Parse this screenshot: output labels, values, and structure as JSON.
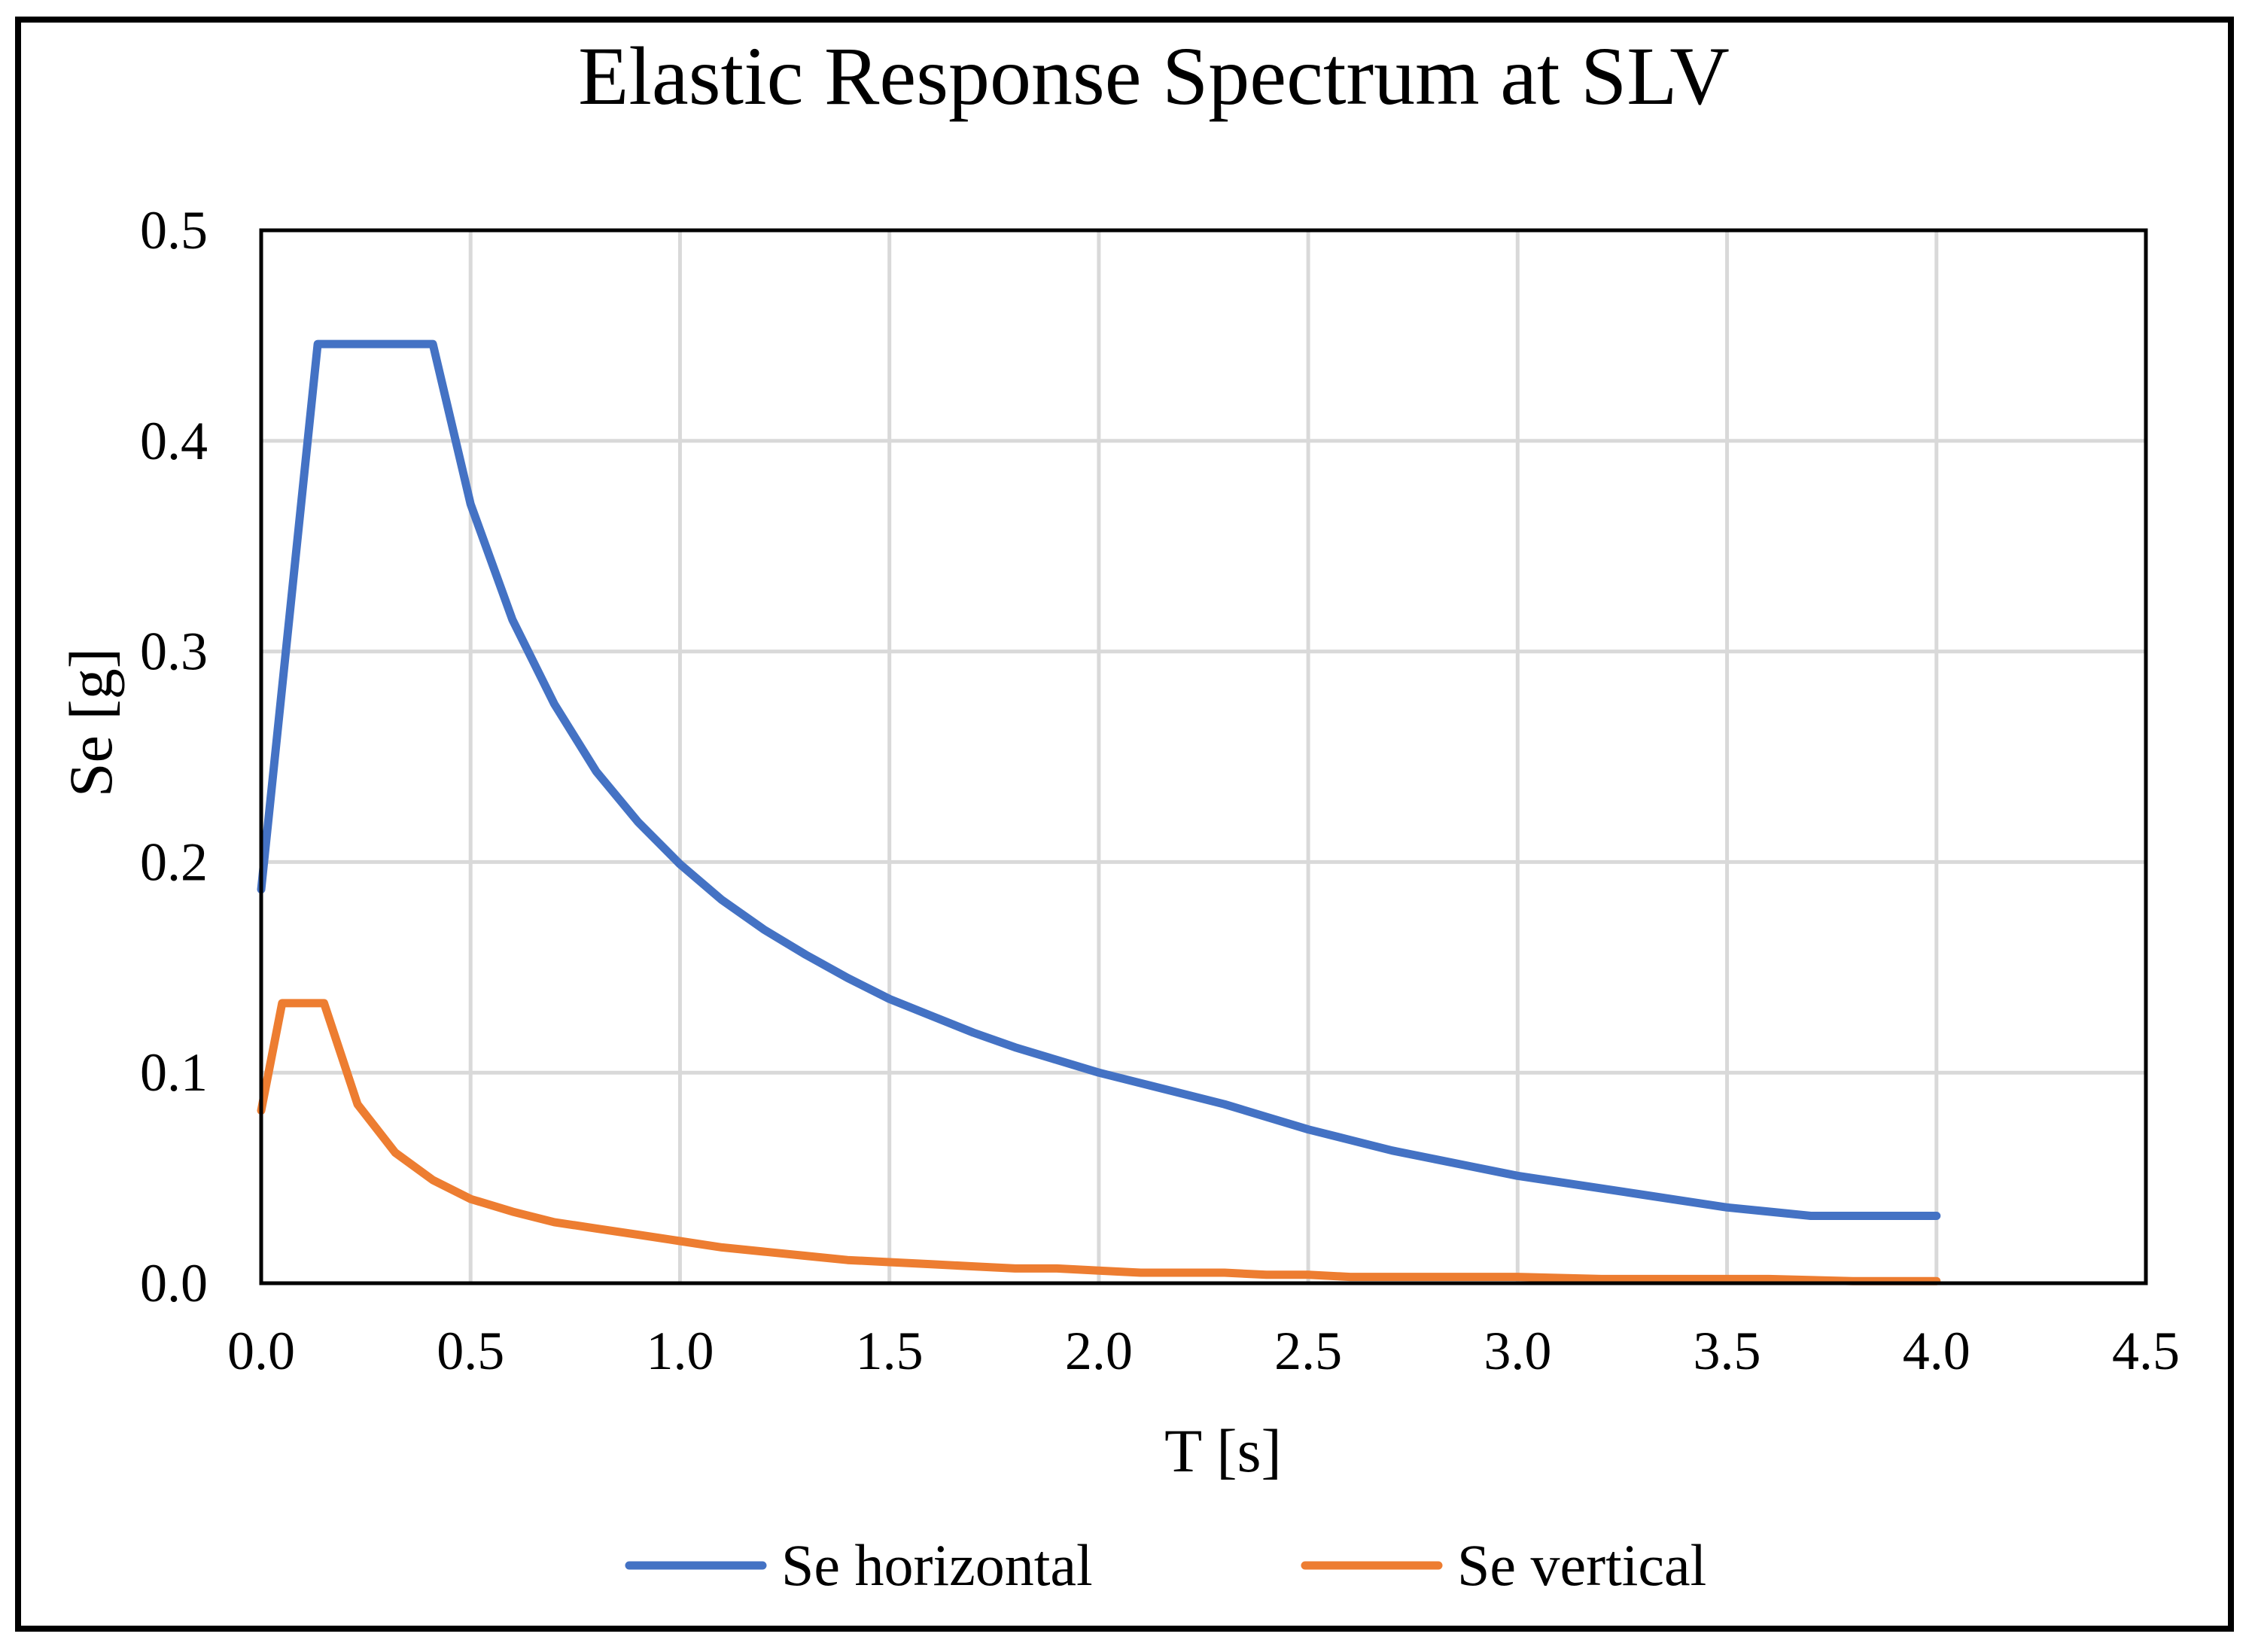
{
  "chart_data": {
    "type": "line",
    "title": "Elastic Response Spectrum at SLV",
    "xlabel": "T [s]",
    "ylabel": "Se [g]",
    "xlim": [
      0,
      4.5
    ],
    "ylim": [
      0,
      0.5
    ],
    "xticks": [
      0,
      0.5,
      1.0,
      1.5,
      2.0,
      2.5,
      3.0,
      3.5,
      4.0,
      4.5
    ],
    "yticks": [
      0,
      0.1,
      0.2,
      0.3,
      0.4,
      0.5
    ],
    "xtick_labels": [
      "0.0",
      "0.5",
      "1.0",
      "1.5",
      "2.0",
      "2.5",
      "3.0",
      "3.5",
      "4.0",
      "4.5"
    ],
    "ytick_labels": [
      "0.0",
      "0.1",
      "0.2",
      "0.3",
      "0.4",
      "0.5"
    ],
    "grid": true,
    "legend_position": "bottom",
    "series": [
      {
        "name": "Se horizontal",
        "color": "#4472C4",
        "x": [
          0,
          0.135,
          0.41,
          0.5,
          0.6,
          0.7,
          0.8,
          0.9,
          1.0,
          1.1,
          1.2,
          1.3,
          1.4,
          1.5,
          1.6,
          1.7,
          1.8,
          1.9,
          2.0,
          2.1,
          2.2,
          2.3,
          2.4,
          2.5,
          2.6,
          2.7,
          2.8,
          2.9,
          3.0,
          3.1,
          3.2,
          3.3,
          3.4,
          3.5,
          3.6,
          3.7,
          3.8,
          3.9,
          4.0
        ],
        "y": [
          0.187,
          0.446,
          0.446,
          0.37,
          0.315,
          0.275,
          0.243,
          0.219,
          0.199,
          0.182,
          0.168,
          0.156,
          0.145,
          0.135,
          0.127,
          0.119,
          0.112,
          0.106,
          0.1,
          0.095,
          0.09,
          0.085,
          0.079,
          0.073,
          0.068,
          0.063,
          0.059,
          0.055,
          0.051,
          0.048,
          0.045,
          0.042,
          0.039,
          0.036,
          0.034,
          0.032,
          0.032,
          0.032,
          0.032
        ]
      },
      {
        "name": "Se vertical",
        "color": "#ED7D31",
        "x": [
          0,
          0.05,
          0.15,
          0.23,
          0.32,
          0.41,
          0.5,
          0.6,
          0.7,
          0.8,
          0.9,
          1.0,
          1.1,
          1.2,
          1.3,
          1.4,
          1.5,
          1.6,
          1.7,
          1.8,
          1.9,
          2.0,
          2.1,
          2.2,
          2.3,
          2.4,
          2.5,
          2.6,
          2.8,
          3.0,
          3.2,
          3.4,
          3.6,
          3.8,
          4.0
        ],
        "y": [
          0.082,
          0.133,
          0.133,
          0.085,
          0.062,
          0.049,
          0.04,
          0.034,
          0.029,
          0.026,
          0.023,
          0.02,
          0.017,
          0.015,
          0.013,
          0.011,
          0.01,
          0.009,
          0.008,
          0.007,
          0.007,
          0.006,
          0.005,
          0.005,
          0.005,
          0.004,
          0.004,
          0.003,
          0.003,
          0.003,
          0.002,
          0.002,
          0.002,
          0.001,
          0.001
        ]
      }
    ]
  }
}
